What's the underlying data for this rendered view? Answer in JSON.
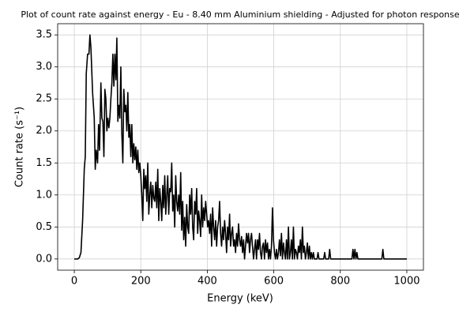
{
  "chart_data": {
    "type": "line",
    "title": "Plot of count rate against energy - Eu - 8.40 mm Aluminium shielding - Adjusted for photon response",
    "xlabel": "Energy (keV)",
    "ylabel": "Count rate (s⁻¹)",
    "color": "#000000",
    "grid": true,
    "xlim": [
      -50,
      1050
    ],
    "ylim": [
      -0.175,
      3.675
    ],
    "xticks": [
      0,
      200,
      400,
      600,
      800,
      1000
    ],
    "yticks": [
      {
        "value": 0,
        "label": "0.0"
      },
      {
        "value": 0.5,
        "label": "0.5"
      },
      {
        "value": 1,
        "label": "1.0"
      },
      {
        "value": 1.5,
        "label": "1.5"
      },
      {
        "value": 2,
        "label": "2.0"
      },
      {
        "value": 2.5,
        "label": "2.5"
      },
      {
        "value": 3,
        "label": "3.0"
      },
      {
        "value": 3.5,
        "label": "3.5"
      }
    ],
    "x": [
      0,
      10,
      15,
      20,
      25,
      30,
      33,
      36,
      40,
      44,
      47,
      50,
      55,
      60,
      63,
      66,
      70,
      73,
      76,
      80,
      83,
      86,
      89,
      92,
      95,
      98,
      101,
      104,
      107,
      110,
      113,
      116,
      119,
      122,
      125,
      128,
      131,
      134,
      137,
      140,
      143,
      146,
      149,
      152,
      155,
      158,
      161,
      164,
      167,
      170,
      173,
      176,
      179,
      182,
      185,
      188,
      191,
      194,
      197,
      200,
      203,
      206,
      209,
      212,
      215,
      218,
      221,
      224,
      227,
      230,
      233,
      236,
      239,
      242,
      245,
      248,
      251,
      254,
      257,
      260,
      263,
      266,
      269,
      272,
      275,
      278,
      281,
      284,
      287,
      290,
      293,
      296,
      299,
      302,
      305,
      308,
      311,
      314,
      317,
      320,
      323,
      326,
      329,
      332,
      335,
      338,
      341,
      344,
      347,
      350,
      353,
      356,
      359,
      362,
      365,
      368,
      371,
      374,
      377,
      380,
      383,
      386,
      389,
      392,
      395,
      398,
      401,
      404,
      407,
      410,
      413,
      416,
      419,
      422,
      425,
      428,
      431,
      434,
      437,
      440,
      443,
      446,
      449,
      452,
      455,
      458,
      461,
      464,
      467,
      470,
      473,
      476,
      479,
      482,
      485,
      488,
      491,
      494,
      497,
      500,
      503,
      506,
      509,
      512,
      515,
      518,
      521,
      524,
      527,
      530,
      533,
      536,
      539,
      542,
      545,
      548,
      551,
      554,
      557,
      560,
      563,
      566,
      569,
      572,
      575,
      578,
      581,
      584,
      587,
      590,
      593,
      596,
      599,
      602,
      605,
      608,
      611,
      614,
      617,
      620,
      623,
      626,
      629,
      632,
      635,
      638,
      641,
      644,
      647,
      650,
      653,
      656,
      659,
      662,
      665,
      668,
      671,
      674,
      677,
      680,
      683,
      686,
      689,
      692,
      695,
      698,
      701,
      704,
      707,
      710,
      713,
      716,
      719,
      722,
      730,
      733,
      736,
      750,
      753,
      756,
      765,
      768,
      771,
      835,
      838,
      841,
      844,
      847,
      850,
      853,
      925,
      928,
      931,
      1000
    ],
    "values": [
      0,
      0,
      0.02,
      0.1,
      0.6,
      1.4,
      1.6,
      2.9,
      3.2,
      3.2,
      3.5,
      3.3,
      2.6,
      2.2,
      1.4,
      1.7,
      1.5,
      2.1,
      1.7,
      2.75,
      2.2,
      2.15,
      1.6,
      2.65,
      2.5,
      2.0,
      2.2,
      2.05,
      2.2,
      2.5,
      2.75,
      3.2,
      2.7,
      3.2,
      2.8,
      3.45,
      2.15,
      2.4,
      2.2,
      3.0,
      1.95,
      1.5,
      2.65,
      2.3,
      2.4,
      2.0,
      2.6,
      1.9,
      2.1,
      1.6,
      2.1,
      1.5,
      1.8,
      1.55,
      1.75,
      1.4,
      1.7,
      1.35,
      1.5,
      1.3,
      1.0,
      0.6,
      1.4,
      1.1,
      1.3,
      0.9,
      1.5,
      0.7,
      1.0,
      1.2,
      0.8,
      1.15,
      0.95,
      0.9,
      1.2,
      0.8,
      1.4,
      0.6,
      1.1,
      0.9,
      0.6,
      1.15,
      0.8,
      1.3,
      0.7,
      1.0,
      1.3,
      0.7,
      1.1,
      1.05,
      1.5,
      0.75,
      1.0,
      0.5,
      1.3,
      0.9,
      0.75,
      1.0,
      0.7,
      1.35,
      0.45,
      0.9,
      0.3,
      0.65,
      0.2,
      0.85,
      0.5,
      0.4,
      1.0,
      0.7,
      1.1,
      0.5,
      0.3,
      0.9,
      0.7,
      1.1,
      0.4,
      0.75,
      0.6,
      0.35,
      1.0,
      0.5,
      0.8,
      0.6,
      0.9,
      0.7,
      0.5,
      0.6,
      0.4,
      0.7,
      0.2,
      0.8,
      0.5,
      0.3,
      0.6,
      0.2,
      0.5,
      0.6,
      0.9,
      0.4,
      0.2,
      0.5,
      0.3,
      0.6,
      0.4,
      0.1,
      0.5,
      0.3,
      0.7,
      0.2,
      0.4,
      0.5,
      0.2,
      0.3,
      0.1,
      0.4,
      0.2,
      0.55,
      0.3,
      0.2,
      0.35,
      0.1,
      0.3,
      0,
      0.2,
      0.4,
      0.25,
      0.4,
      0.1,
      0.3,
      0.4,
      0.2,
      0,
      0.15,
      0.3,
      0,
      0.3,
      0.15,
      0.4,
      0.1,
      0,
      0.2,
      0.25,
      0,
      0.3,
      0.1,
      0.25,
      0,
      0.15,
      0,
      0.2,
      0.8,
      0.3,
      0.1,
      0,
      0.15,
      0,
      0.1,
      0.3,
      0.05,
      0.4,
      0,
      0.25,
      0.1,
      0,
      0.3,
      0,
      0.5,
      0,
      0.1,
      0.3,
      0,
      0.5,
      0,
      0.15,
      0.1,
      0,
      0.2,
      0.1,
      0.3,
      0,
      0.5,
      0.1,
      0.2,
      0,
      0.1,
      0.25,
      0,
      0.2,
      0,
      0.1,
      0,
      0.1,
      0,
      0,
      0.1,
      0,
      0,
      0.1,
      0,
      0,
      0.15,
      0,
      0,
      0.15,
      0,
      0.15,
      0,
      0.1,
      0,
      0,
      0.15,
      0,
      0
    ]
  }
}
